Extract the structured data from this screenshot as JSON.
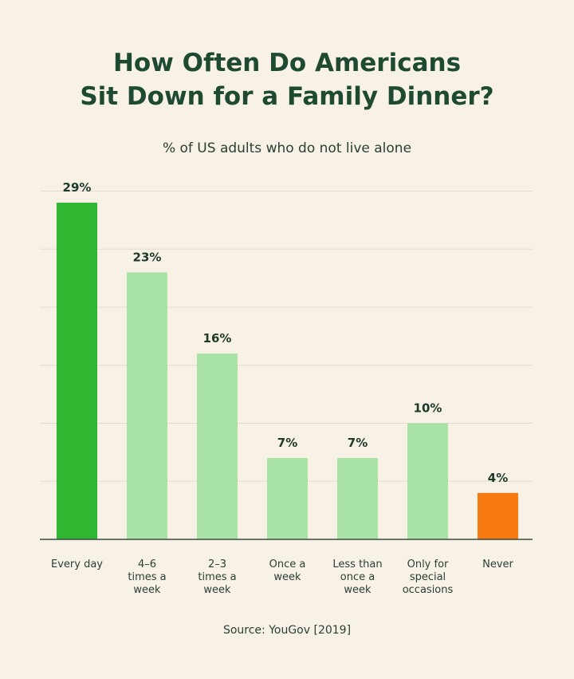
{
  "chart_data": {
    "type": "bar",
    "title_lines": [
      "How Often Do Americans",
      "Sit Down for a Family Dinner?"
    ],
    "subtitle": "% of US adults who do not live alone",
    "source": "Source: YouGov [2019]",
    "categories": [
      [
        "Every day"
      ],
      [
        "4–6",
        "times a",
        "week"
      ],
      [
        "2–3",
        "times a",
        "week"
      ],
      [
        "Once a",
        "week"
      ],
      [
        "Less than",
        "once a",
        "week"
      ],
      [
        "Only for",
        "special",
        "occasions"
      ],
      [
        "Never"
      ]
    ],
    "values": [
      29,
      23,
      16,
      7,
      7,
      10,
      4
    ],
    "value_labels": [
      "29%",
      "23%",
      "16%",
      "7%",
      "7%",
      "10%",
      "4%"
    ],
    "colors": [
      "#2fb732",
      "#a8e2a4",
      "#a8e2a4",
      "#a8e2a4",
      "#a8e2a4",
      "#a8e2a4",
      "#f77a12"
    ],
    "ylim": [
      0,
      30
    ],
    "grid": true,
    "legend": "none"
  }
}
